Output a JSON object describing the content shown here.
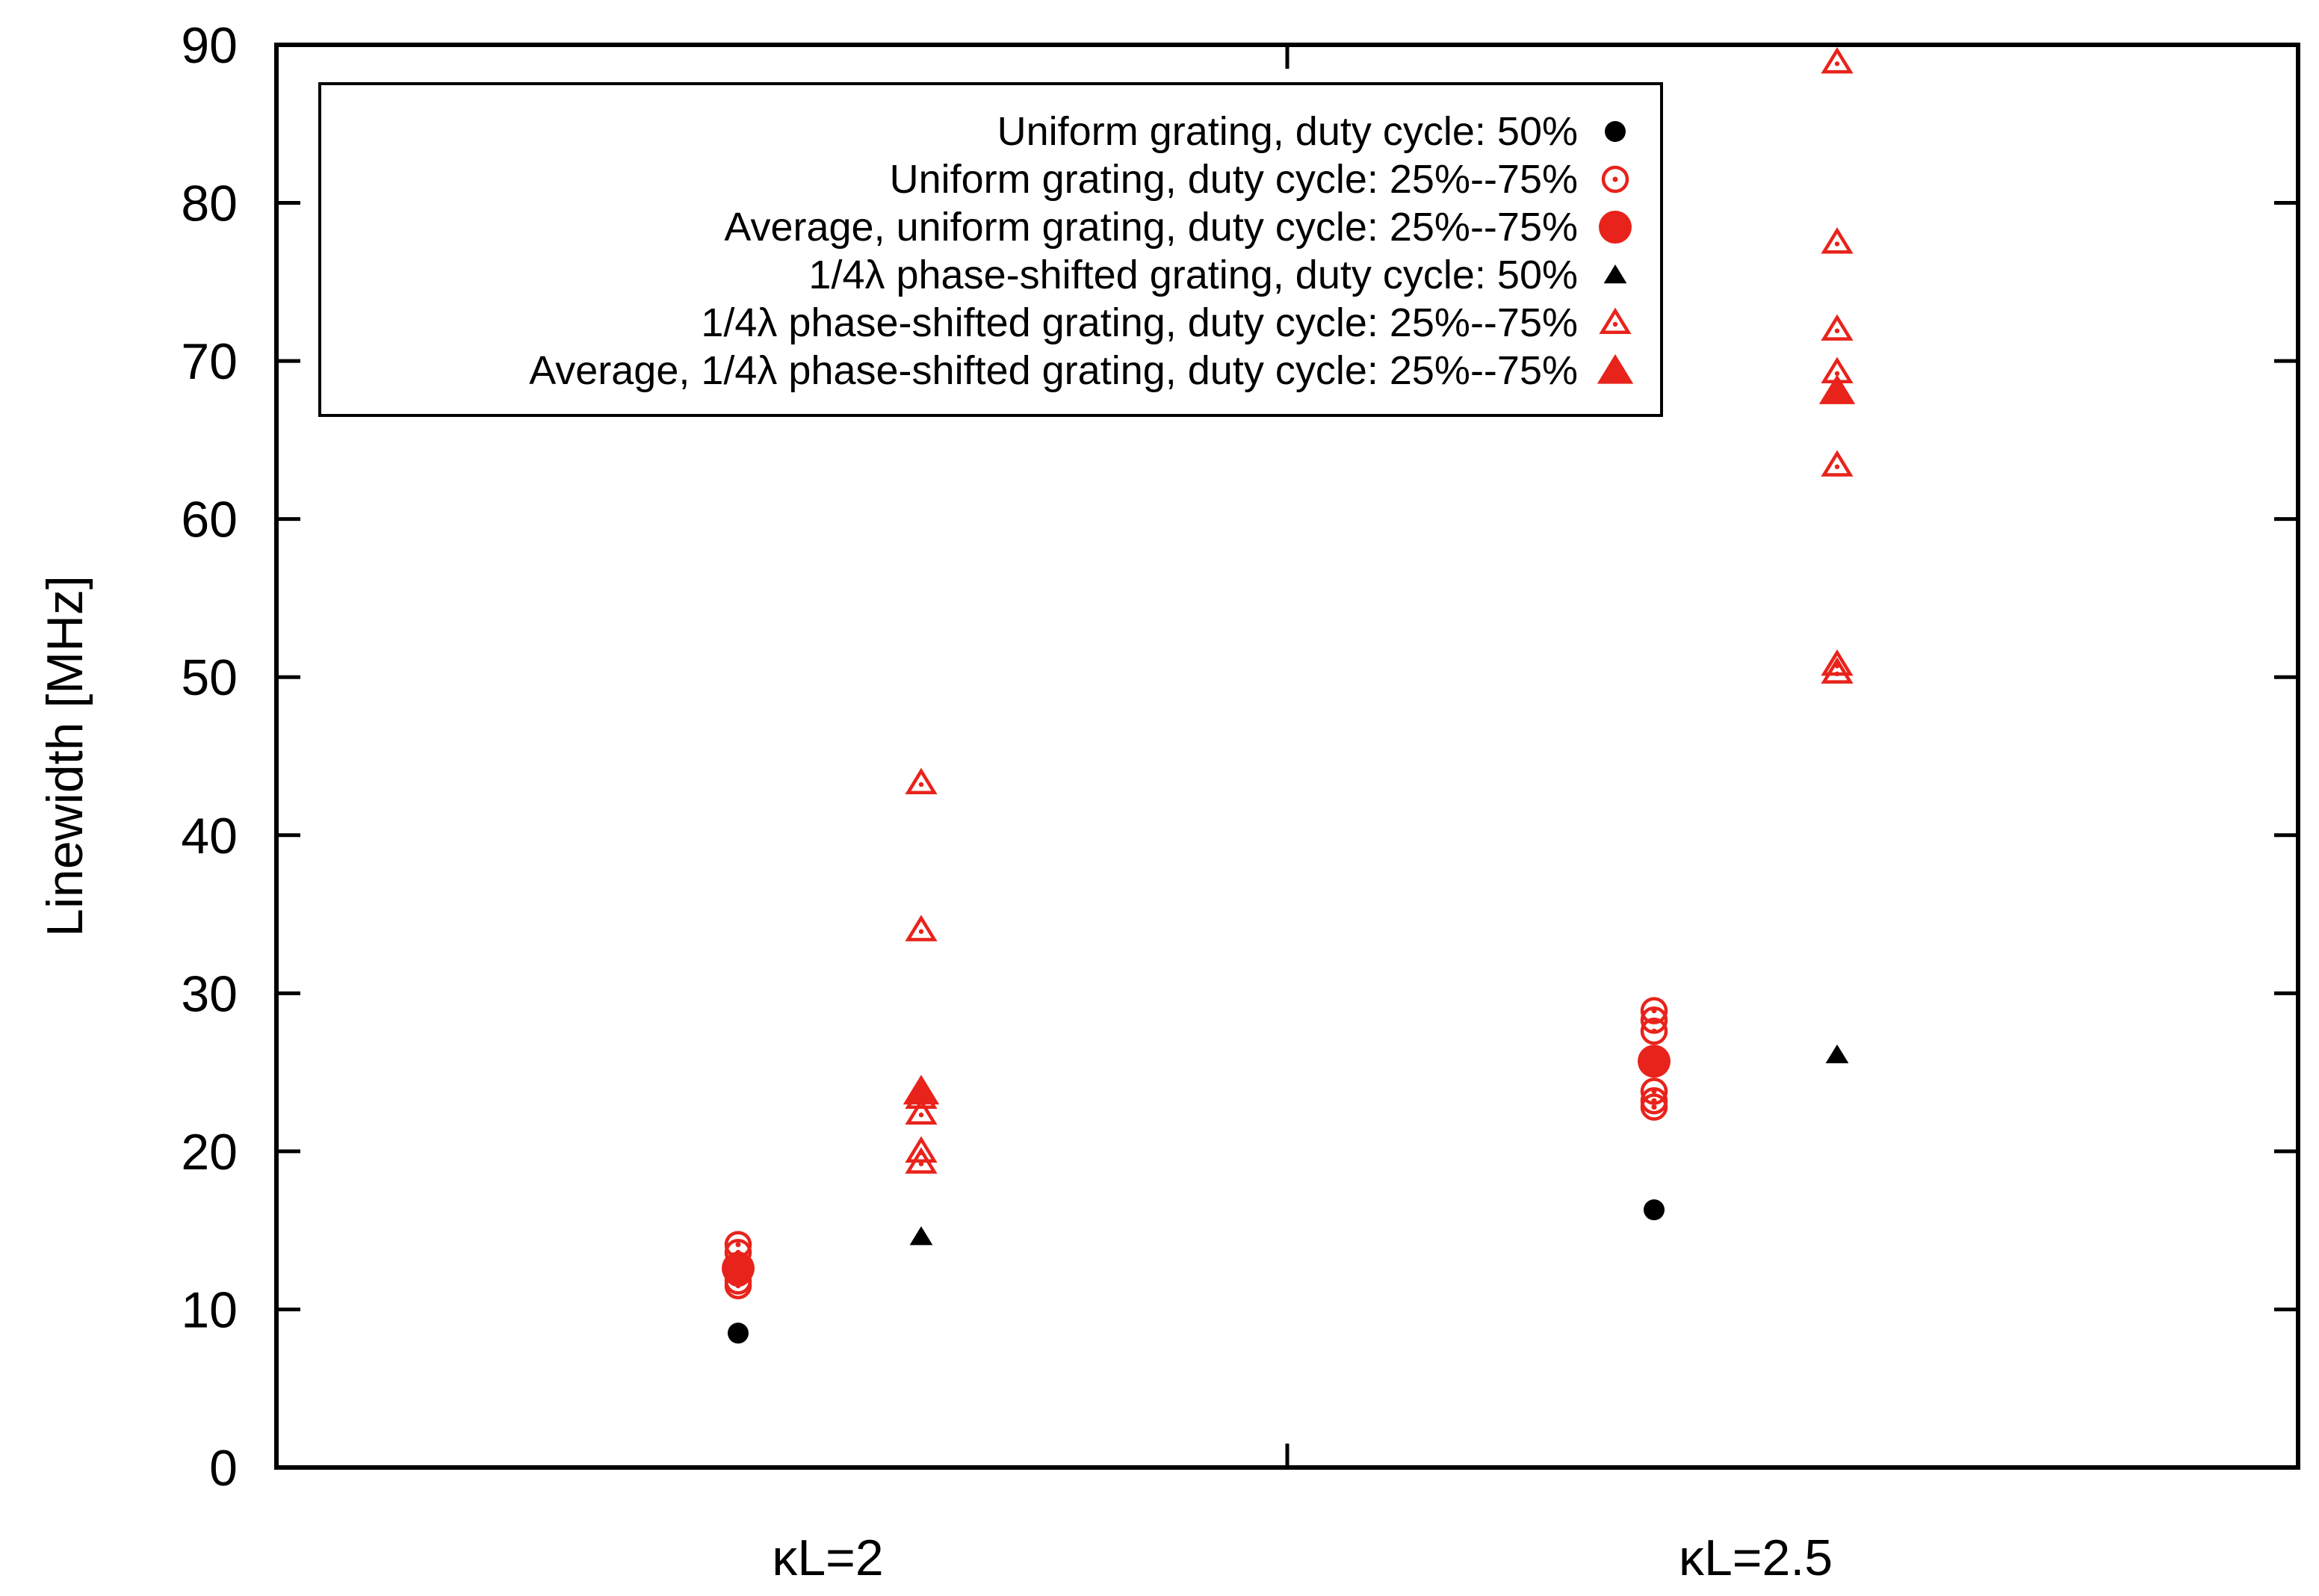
{
  "chart_data": {
    "type": "scatter",
    "title": "",
    "xlabel": "",
    "ylabel": "Linewidth [MHz]",
    "ylim": [
      0,
      90
    ],
    "yticks": [
      0,
      10,
      20,
      30,
      40,
      50,
      60,
      70,
      80,
      90
    ],
    "categories": [
      "κL=2",
      "κL=2.5"
    ],
    "grid": false,
    "legend_position": "top-left",
    "colors": {
      "black": "#000000",
      "red": "#e8231b"
    },
    "series": [
      {
        "name": "Uniform grating, duty cycle: 50%",
        "marker": "filled-circle-small",
        "color": "#000000",
        "points": [
          {
            "category": "κL=2",
            "value": 8.5
          },
          {
            "category": "κL=2.5",
            "value": 16.3
          }
        ]
      },
      {
        "name": "Uniform grating, duty cycle: 25%--75%",
        "marker": "open-circle",
        "color": "#e8231b",
        "points": [
          {
            "category": "κL=2",
            "value": 14.1
          },
          {
            "category": "κL=2",
            "value": 13.6
          },
          {
            "category": "κL=2",
            "value": 12.8
          },
          {
            "category": "κL=2",
            "value": 12.3
          },
          {
            "category": "κL=2",
            "value": 11.8
          },
          {
            "category": "κL=2",
            "value": 11.5
          },
          {
            "category": "κL=2.5",
            "value": 28.9
          },
          {
            "category": "κL=2.5",
            "value": 28.3
          },
          {
            "category": "κL=2.5",
            "value": 27.6
          },
          {
            "category": "κL=2.5",
            "value": 23.8
          },
          {
            "category": "κL=2.5",
            "value": 23.2
          },
          {
            "category": "κL=2.5",
            "value": 22.8
          }
        ]
      },
      {
        "name": "Average, uniform grating, duty cycle: 25%--75%",
        "marker": "filled-circle-large",
        "color": "#e8231b",
        "points": [
          {
            "category": "κL=2",
            "value": 12.6
          },
          {
            "category": "κL=2.5",
            "value": 25.7
          }
        ]
      },
      {
        "name": "1/4λ phase-shifted grating, duty cycle: 50%",
        "marker": "filled-triangle-small",
        "color": "#000000",
        "points": [
          {
            "category": "κL=2",
            "value": 14.6
          },
          {
            "category": "κL=2.5",
            "value": 26.1
          }
        ]
      },
      {
        "name": "1/4λ phase-shifted grating, duty cycle: 25%--75%",
        "marker": "open-triangle",
        "color": "#e8231b",
        "points": [
          {
            "category": "κL=2",
            "value": 43.3
          },
          {
            "category": "κL=2",
            "value": 34.0
          },
          {
            "category": "κL=2",
            "value": 23.4
          },
          {
            "category": "κL=2",
            "value": 22.4
          },
          {
            "category": "κL=2",
            "value": 20.0
          },
          {
            "category": "κL=2",
            "value": 19.3
          },
          {
            "category": "κL=2.5",
            "value": 88.9
          },
          {
            "category": "κL=2.5",
            "value": 77.5
          },
          {
            "category": "κL=2.5",
            "value": 72.0
          },
          {
            "category": "κL=2.5",
            "value": 69.3
          },
          {
            "category": "κL=2.5",
            "value": 63.4
          },
          {
            "category": "κL=2.5",
            "value": 50.8
          },
          {
            "category": "κL=2.5",
            "value": 50.3
          }
        ]
      },
      {
        "name": "Average, 1/4λ phase-shifted grating, duty cycle: 25%--75%",
        "marker": "filled-triangle-large",
        "color": "#e8231b",
        "points": [
          {
            "category": "κL=2",
            "value": 23.8
          },
          {
            "category": "κL=2.5",
            "value": 68.1
          }
        ]
      }
    ]
  }
}
